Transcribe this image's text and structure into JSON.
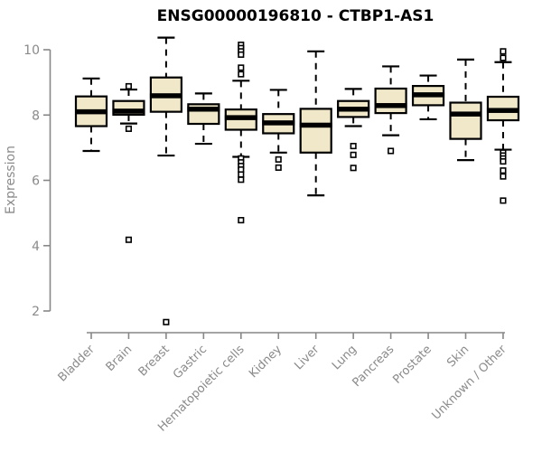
{
  "chart_data": {
    "type": "boxplot",
    "title": "ENSG00000196810 - CTBP1-AS1",
    "ylabel": "Expression",
    "xlabel": "",
    "ylim": [
      1.5,
      10.5
    ],
    "yticks": [
      2,
      4,
      6,
      8,
      10
    ],
    "grid": false,
    "legend": "none",
    "colors": {
      "box_fill": "#f0e8c8",
      "box_stroke": "#000000",
      "median": "#000000",
      "whisker": "#000000",
      "axis_line": "#878787",
      "axis_text": "#8a8a8a",
      "title_text": "#000000",
      "background": "#ffffff"
    },
    "categories": [
      "Bladder",
      "Brain",
      "Breast",
      "Gastric",
      "Hematopoietic cells",
      "Kidney",
      "Liver",
      "Lung",
      "Pancreas",
      "Prostate",
      "Skin",
      "Unknown / Other"
    ],
    "series": [
      {
        "category": "Bladder",
        "whisker_low": 6.9,
        "q1": 7.66,
        "median": 8.1,
        "q3": 8.57,
        "whisker_high": 9.12,
        "outliers": []
      },
      {
        "category": "Brain",
        "whisker_low": 7.74,
        "q1": 8.01,
        "median": 8.12,
        "q3": 8.43,
        "whisker_high": 8.78,
        "outliers": [
          8.88,
          7.58,
          4.18
        ]
      },
      {
        "category": "Breast",
        "whisker_low": 6.76,
        "q1": 8.1,
        "median": 8.59,
        "q3": 9.15,
        "whisker_high": 10.37,
        "outliers": [
          1.66
        ]
      },
      {
        "category": "Gastric",
        "whisker_low": 7.12,
        "q1": 7.73,
        "median": 8.18,
        "q3": 8.33,
        "whisker_high": 8.66,
        "outliers": []
      },
      {
        "category": "Hematopoietic cells",
        "whisker_low": 6.72,
        "q1": 7.55,
        "median": 7.92,
        "q3": 8.17,
        "whisker_high": 9.05,
        "outliers": [
          10.15,
          10.05,
          9.95,
          9.85,
          9.45,
          9.25,
          6.67,
          6.55,
          6.44,
          6.33,
          6.18,
          6.02,
          4.78
        ]
      },
      {
        "category": "Kidney",
        "whisker_low": 6.85,
        "q1": 7.44,
        "median": 7.76,
        "q3": 8.03,
        "whisker_high": 8.77,
        "outliers": [
          6.64,
          6.39
        ]
      },
      {
        "category": "Liver",
        "whisker_low": 5.54,
        "q1": 6.85,
        "median": 7.69,
        "q3": 8.19,
        "whisker_high": 9.95,
        "outliers": []
      },
      {
        "category": "Lung",
        "whisker_low": 7.66,
        "q1": 7.94,
        "median": 8.18,
        "q3": 8.43,
        "whisker_high": 8.8,
        "outliers": [
          7.05,
          6.78,
          6.38
        ]
      },
      {
        "category": "Pancreas",
        "whisker_low": 7.38,
        "q1": 8.06,
        "median": 8.29,
        "q3": 8.81,
        "whisker_high": 9.49,
        "outliers": [
          6.9
        ]
      },
      {
        "category": "Prostate",
        "whisker_low": 7.87,
        "q1": 8.3,
        "median": 8.62,
        "q3": 8.89,
        "whisker_high": 9.21,
        "outliers": []
      },
      {
        "category": "Skin",
        "whisker_low": 6.62,
        "q1": 7.27,
        "median": 8.03,
        "q3": 8.38,
        "whisker_high": 9.7,
        "outliers": []
      },
      {
        "category": "Unknown / Other",
        "whisker_low": 6.94,
        "q1": 7.84,
        "median": 8.14,
        "q3": 8.56,
        "whisker_high": 9.62,
        "outliers": [
          9.95,
          9.75,
          6.85,
          6.76,
          6.67,
          6.58,
          6.3,
          6.12,
          5.38
        ]
      }
    ]
  }
}
